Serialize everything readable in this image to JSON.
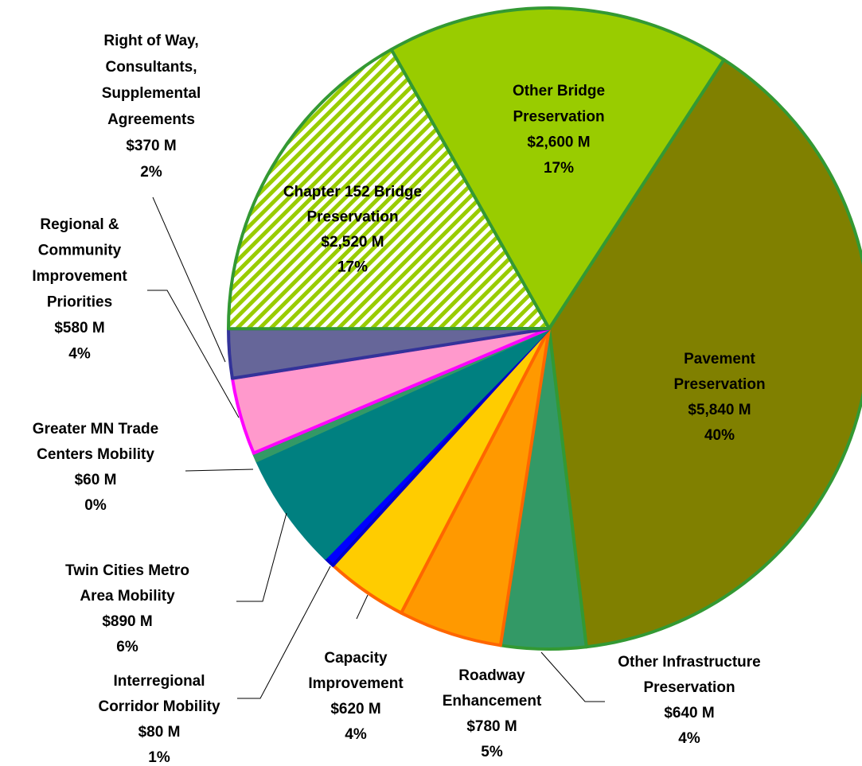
{
  "chart_data": {
    "type": "pie",
    "categories": [
      [
        "Pavement",
        "Preservation"
      ],
      [
        "Other Infrastructure",
        "Preservation"
      ],
      [
        "Roadway",
        "Enhancement"
      ],
      [
        "Capacity",
        "Improvement"
      ],
      [
        "Interregional",
        "Corridor Mobility"
      ],
      [
        "Twin Cities Metro",
        "Area Mobility"
      ],
      [
        "Greater MN Trade",
        "Centers Mobility"
      ],
      [
        "Regional &",
        "Community",
        "Improvement",
        "Priorities"
      ],
      [
        "Right of Way,",
        "Consultants,",
        "Supplemental",
        "Agreements"
      ],
      [
        "Chapter 152 Bridge",
        "Preservation"
      ],
      [
        "Other Bridge",
        "Preservation"
      ]
    ],
    "values": [
      5840,
      640,
      780,
      620,
      80,
      890,
      60,
      580,
      370,
      2520,
      2600
    ],
    "value_labels": [
      "$5,840 M",
      "$640 M",
      "$780 M",
      "$620 M",
      "$80 M",
      "$890 M",
      "$60 M",
      "$580 M",
      "$370 M",
      "$2,520 M",
      "$2,600 M"
    ],
    "percent_labels": [
      "40%",
      "4%",
      "5%",
      "4%",
      "1%",
      "6%",
      "0%",
      "4%",
      "2%",
      "17%",
      "17%"
    ],
    "colors": [
      "#808000",
      "#339966",
      "#ff9900",
      "#ffcc00",
      "#0000ff",
      "#008080",
      "#339966",
      "#ff99cc",
      "#666699",
      "#99cc00",
      "#99cc00"
    ],
    "borders": [
      "#339933",
      "#339933",
      "#ff6600",
      "#ff6600",
      "#0000cc",
      "#008080",
      "#339966",
      "#ff00ff",
      "#333399",
      "#339933",
      "#339933"
    ],
    "patterns": [
      null,
      null,
      null,
      null,
      null,
      null,
      null,
      null,
      null,
      "diagonal",
      null
    ]
  }
}
